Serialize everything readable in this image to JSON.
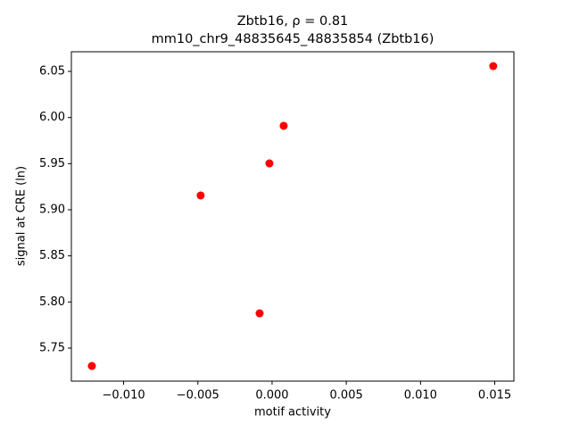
{
  "chart_data": {
    "type": "scatter",
    "title": "Zbtb16, ρ = 0.81",
    "subtitle": "mm10_chr9_48835645_48835854 (Zbtb16)",
    "x_label": "motif activity",
    "y_label": "signal at CRE (ln)",
    "color": "#ff0000",
    "x": [
      -0.01214,
      -0.00481,
      -0.00084,
      -0.00018,
      0.00078,
      0.0149
    ],
    "values": [
      5.7306,
      5.9155,
      5.7877,
      5.9503,
      5.991,
      6.0558
    ],
    "xlim": [
      -0.01352,
      0.01629
    ],
    "ylim": [
      5.7142,
      6.0713
    ],
    "xticks": [
      {
        "value": -0.01,
        "label": "−0.010"
      },
      {
        "value": -0.005,
        "label": "−0.005"
      },
      {
        "value": 0,
        "label": "0.000"
      },
      0.005,
      {
        "value": 0.01,
        "label": "0.010"
      },
      0.015
    ],
    "yticks": [
      5.75,
      {
        "value": 5.8,
        "label": "5.80"
      },
      5.85,
      {
        "value": 5.9,
        "label": "5.90"
      },
      5.95,
      {
        "value": 6,
        "label": "6.00"
      },
      6.05
    ]
  }
}
